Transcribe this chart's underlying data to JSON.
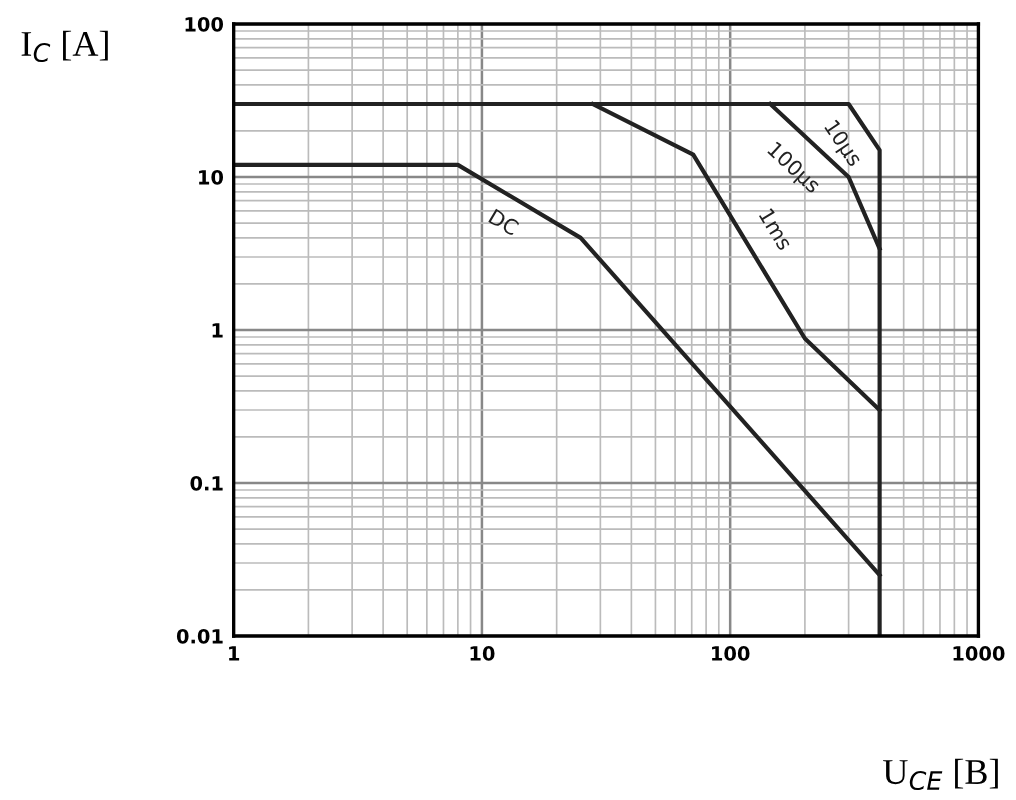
{
  "chart_data": {
    "type": "line",
    "xlabel": "U$_{CE}$ [B]",
    "ylabel": "I$_{C}$ [A]",
    "log": "xy",
    "xlim": [
      1,
      1000
    ],
    "ylim": [
      0.01,
      100
    ],
    "xticks": [
      1,
      10,
      100,
      1000
    ],
    "yticks": [
      0.01,
      0.1,
      1,
      10,
      100
    ],
    "grid": true,
    "legend": false,
    "marker": "none",
    "line_style": "solid",
    "series": [
      {
        "name": "DC",
        "color": "#222222",
        "x": [
          1,
          8,
          25,
          400
        ],
        "values": [
          12,
          12,
          4,
          0.025
        ]
      },
      {
        "name": "1ms",
        "color": "#222222",
        "x": [
          28,
          71,
          200,
          400
        ],
        "values": [
          30,
          14,
          0.88,
          0.3
        ]
      },
      {
        "name": "100µs",
        "color": "#222222",
        "x": [
          145,
          300,
          400
        ],
        "values": [
          30,
          10,
          3.4
        ]
      },
      {
        "name": "10µs",
        "color": "#222222",
        "x": [
          1,
          300,
          400,
          400
        ],
        "values": [
          30,
          30,
          15,
          0.01
        ]
      }
    ]
  }
}
